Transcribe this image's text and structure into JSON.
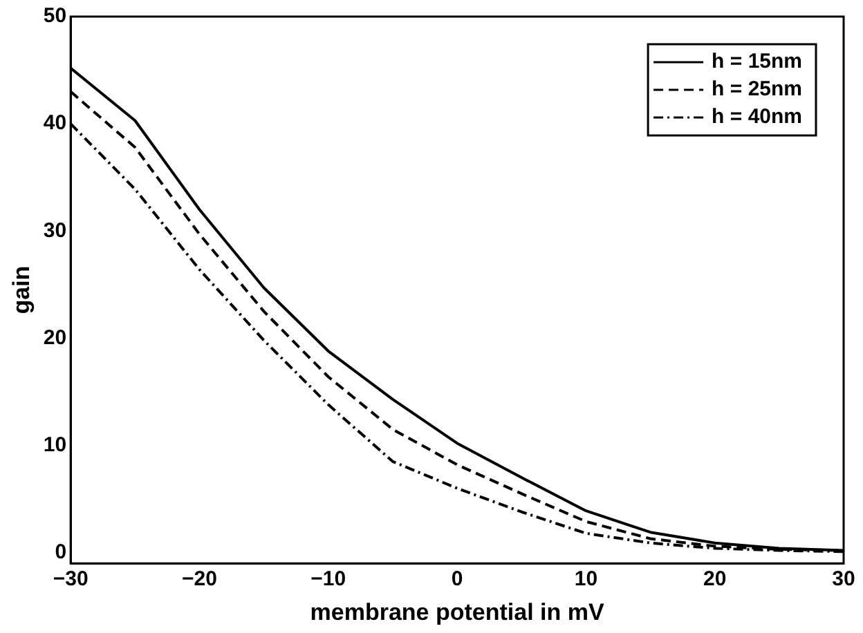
{
  "chart_data": {
    "type": "line",
    "xlabel": "membrane potential in mV",
    "ylabel": "gain",
    "x": [
      -30,
      -25,
      -20,
      -15,
      -10,
      -5,
      0,
      5,
      10,
      15,
      20,
      25,
      30
    ],
    "series": [
      {
        "name": "h = 15nm",
        "color": "#000000",
        "line_style": "solid",
        "values": [
          45.2,
          40.3,
          32,
          24.7,
          18.8,
          14.3,
          10.2,
          7,
          3.9,
          1.9,
          0.9,
          0.4,
          0.2
        ]
      },
      {
        "name": "h = 25nm",
        "color": "#000000",
        "line_style": "dashed",
        "values": [
          43,
          37.8,
          29.7,
          22.5,
          16.4,
          11.5,
          8.2,
          5.5,
          2.9,
          1.3,
          0.6,
          0.3,
          0.2
        ]
      },
      {
        "name": "h = 40nm",
        "color": "#000000",
        "line_style": "dotted",
        "values": [
          40,
          33.9,
          26.4,
          19.8,
          13.8,
          8.5,
          6,
          3.8,
          1.8,
          0.9,
          0.4,
          0.2,
          0.1
        ]
      }
    ],
    "xlim": [
      -30,
      30
    ],
    "xticks": [
      -30,
      -20,
      -10,
      0,
      10,
      20,
      30
    ],
    "ylim": [
      -1,
      50
    ],
    "yticks": [
      0,
      10,
      20,
      30,
      40,
      50
    ],
    "grid": false,
    "legend": "top right",
    "marker": "none"
  }
}
